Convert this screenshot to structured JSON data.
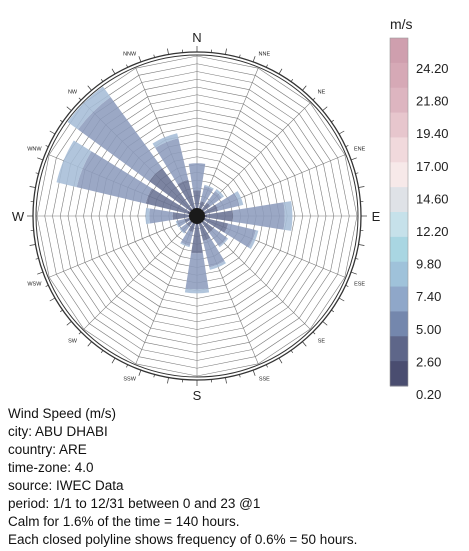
{
  "chart_data": {
    "type": "wind-rose",
    "title": "Wind Speed (m/s)",
    "directions": [
      "N",
      "NNE",
      "NE",
      "ENE",
      "E",
      "ESE",
      "SE",
      "SSE",
      "S",
      "SSW",
      "SW",
      "WSW",
      "W",
      "WNW",
      "NW",
      "NNW"
    ],
    "direction_label_major": [
      "N",
      "E",
      "S",
      "W"
    ],
    "rings_count": 20,
    "ring_percent_step": 0.6,
    "max_percent_scale": 12.0,
    "calm_percent": 1.6,
    "sector_half_width_deg": 9,
    "series": [
      {
        "bin": "0.20-2.60",
        "color": "#4a5073",
        "values": [
          0.2,
          0.2,
          0.2,
          0.3,
          0.4,
          0.3,
          0.2,
          0.2,
          0.3,
          0.2,
          0.2,
          0.2,
          0.3,
          0.4,
          0.4,
          0.3
        ]
      },
      {
        "bin": "2.60-5.00",
        "color": "#6a7394",
        "values": [
          1.4,
          0.6,
          0.7,
          1.0,
          2.0,
          1.8,
          1.0,
          1.4,
          2.2,
          0.7,
          0.4,
          0.4,
          1.2,
          3.3,
          3.8,
          2.2
        ]
      },
      {
        "bin": "5.00-7.40",
        "color": "#8d9cbd",
        "values": [
          2.1,
          1.2,
          1.1,
          1.7,
          4.0,
          2.2,
          1.3,
          2.1,
          2.8,
          1.1,
          0.6,
          0.6,
          1.8,
          5.5,
          6.8,
          3.3
        ]
      },
      {
        "bin": "7.40-9.80",
        "color": "#a6bdd7",
        "values": [
          0.0,
          0.1,
          0.2,
          0.3,
          0.6,
          0.2,
          0.1,
          0.2,
          0.3,
          0.1,
          0.1,
          0.1,
          0.3,
          1.6,
          1.0,
          0.4
        ]
      }
    ],
    "legend": {
      "unit": "m/s",
      "ticks": [
        "24.20",
        "21.80",
        "19.40",
        "17.00",
        "14.60",
        "12.20",
        "9.80",
        "7.40",
        "5.00",
        "2.60",
        "0.20"
      ],
      "colors": [
        "#cf9fae",
        "#d6a9b6",
        "#ddb5c0",
        "#e7c6cd",
        "#f1d9dc",
        "#f7e9e9",
        "#dfe2e7",
        "#c6e1ea",
        "#a9d6e2",
        "#9fc2da",
        "#8fa7c9",
        "#7487ad",
        "#5e6689",
        "#4a4d70"
      ]
    }
  },
  "info": {
    "title": "Wind Speed (m/s)",
    "city": "city: ABU DHABI",
    "country": "country: ARE",
    "timezone": "time-zone: 4.0",
    "source": "source: IWEC Data",
    "period": "period: 1/1 to 12/31 between 0 and 23 @1",
    "calm": "Calm for 1.6% of the time = 140 hours.",
    "frequency": "Each closed polyline shows frequency of 0.6% = 50 hours."
  }
}
